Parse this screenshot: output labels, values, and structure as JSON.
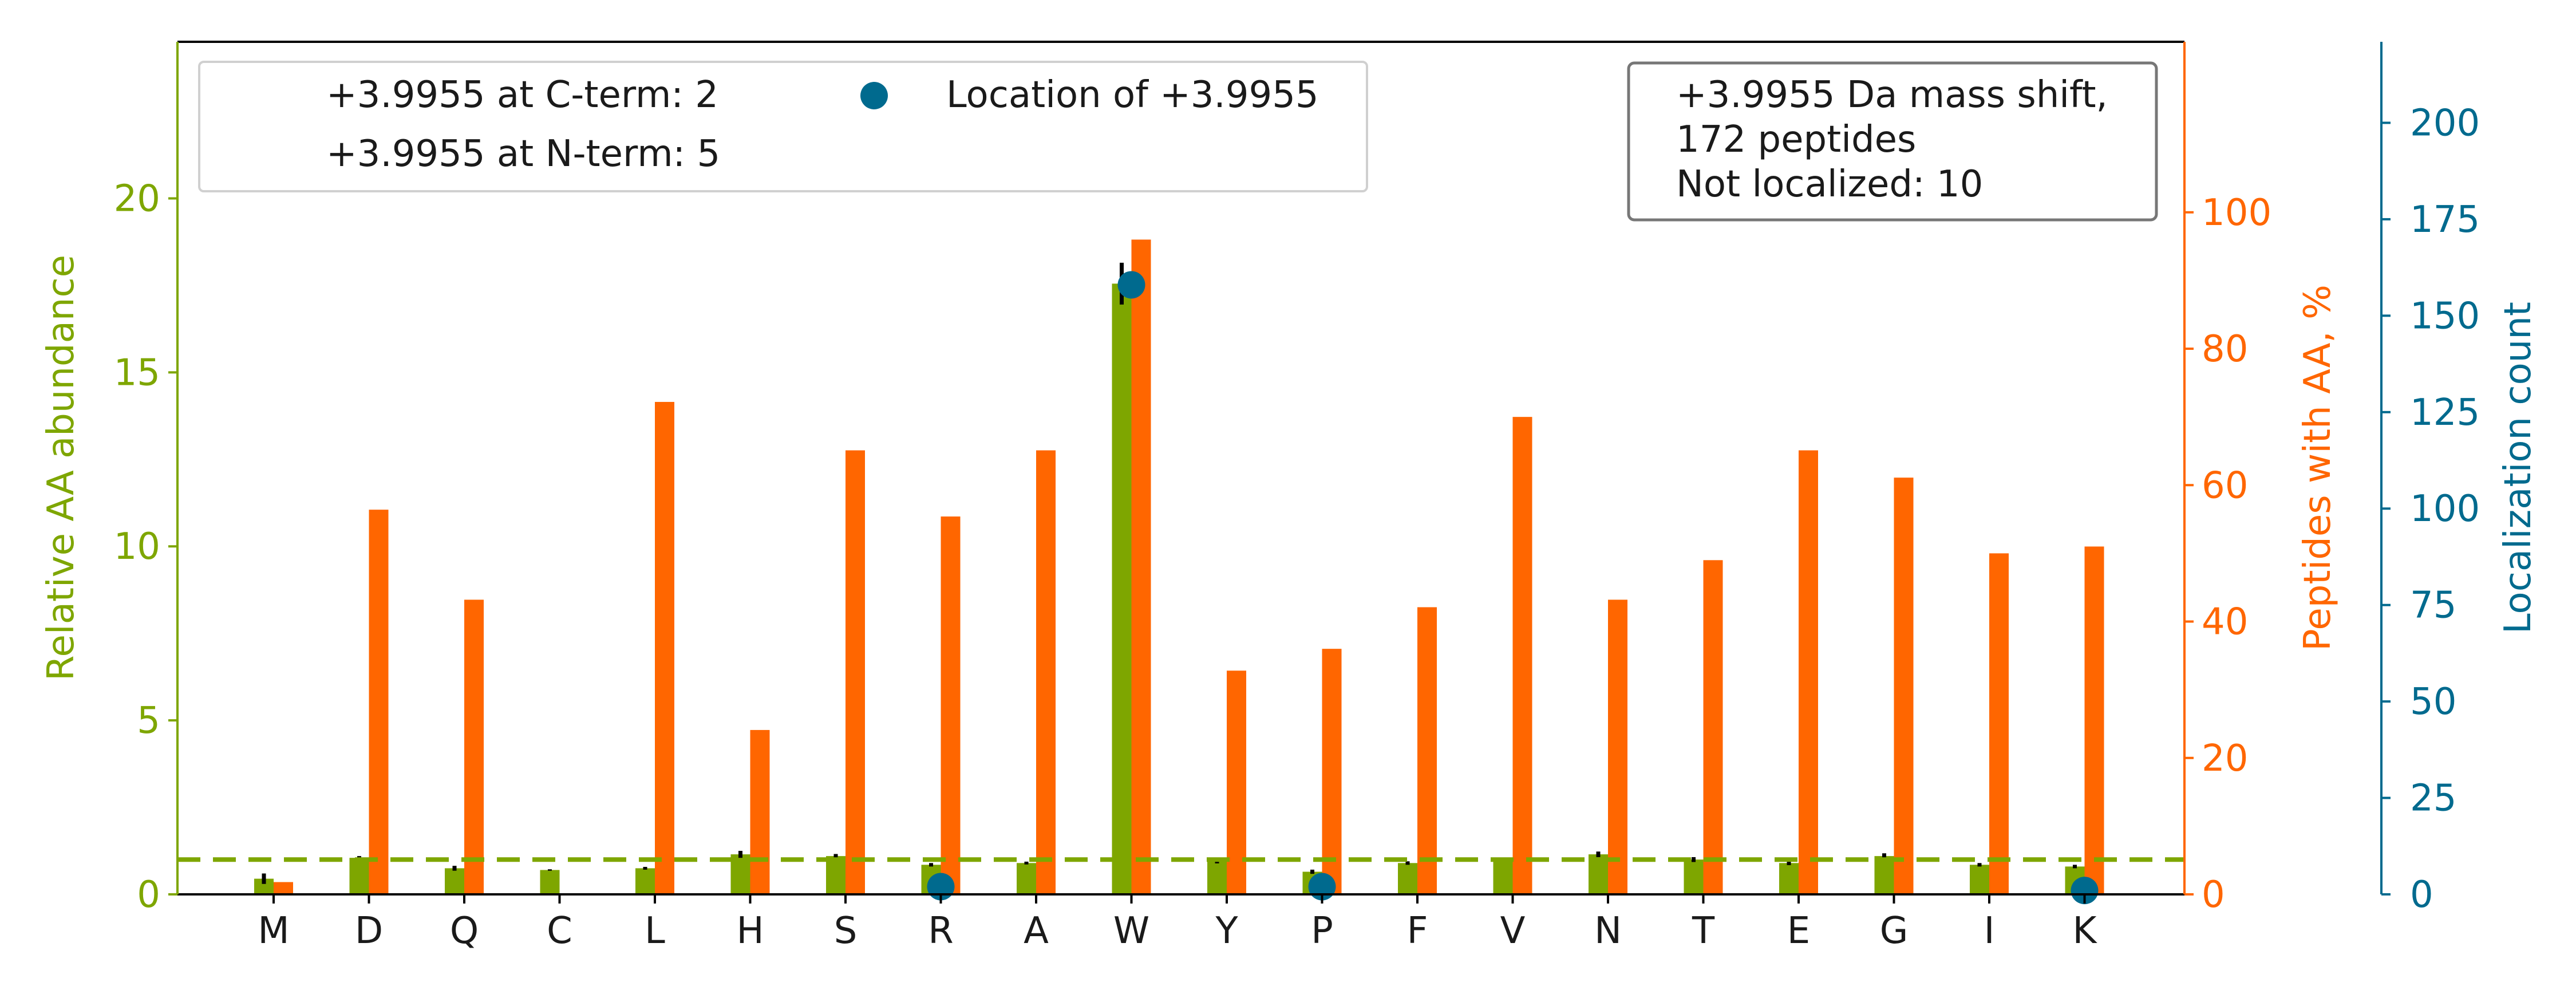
{
  "chart_data": {
    "type": "bar",
    "categories": [
      "M",
      "D",
      "Q",
      "C",
      "L",
      "H",
      "S",
      "R",
      "A",
      "W",
      "Y",
      "P",
      "F",
      "V",
      "N",
      "T",
      "E",
      "G",
      "I",
      "K"
    ],
    "series": [
      {
        "name": "",
        "axis": "left",
        "values": [
          0.45,
          1.05,
          0.75,
          0.7,
          0.75,
          1.15,
          1.1,
          0.85,
          0.9,
          17.55,
          0.95,
          0.65,
          0.9,
          1.0,
          1.15,
          1.0,
          0.9,
          1.1,
          0.85,
          0.8
        ],
        "errors": [
          0.15,
          0.05,
          0.07,
          0.02,
          0.04,
          0.1,
          0.06,
          0.05,
          0.04,
          0.6,
          0.06,
          0.06,
          0.05,
          0.02,
          0.08,
          0.07,
          0.06,
          0.08,
          0.05,
          0.05
        ]
      },
      {
        "name": "",
        "axis": "right",
        "values": [
          1.8,
          56.4,
          43.2,
          0,
          72.2,
          24.1,
          65.1,
          55.4,
          65.1,
          96.0,
          32.8,
          36.0,
          42.1,
          70.0,
          43.2,
          49.0,
          65.1,
          61.1,
          50.0,
          51.0
        ]
      },
      {
        "name": "Location of +3.9955",
        "axis": "far-right",
        "type": "scatter",
        "categories": [
          "R",
          "W",
          "P",
          "K"
        ],
        "values": [
          2,
          158,
          2,
          1
        ]
      }
    ],
    "reference_line": {
      "axis": "left",
      "y": 1,
      "style": "dashed"
    },
    "axes": {
      "left": {
        "label": "Relative AA abundance",
        "ylim": [
          0,
          24.5
        ],
        "ticks": [
          0,
          5,
          10,
          15,
          20
        ]
      },
      "right": {
        "label": "Peptides with AA, %",
        "ylim": [
          0,
          125
        ],
        "ticks": [
          0,
          20,
          40,
          60,
          80,
          100
        ]
      },
      "far_right": {
        "label": "Localization count",
        "ylim": [
          0,
          221
        ],
        "ticks": [
          0,
          25,
          50,
          75,
          100,
          125,
          150,
          175,
          200
        ]
      }
    },
    "legend": {
      "placement": "top-left",
      "lines": [
        "+3.9955 at C-term: 2",
        "+3.9955 at N-term: 5",
        "Location of +3.9955"
      ]
    },
    "annotation": {
      "placement": "top-right",
      "lines": [
        "+3.9955 Da mass shift,",
        "172 peptides",
        "Not localized: 10"
      ]
    },
    "colors": {
      "abundance": "#7ea600",
      "percent": "#ff6600",
      "localization": "#006a8e",
      "error": "#000000"
    }
  }
}
